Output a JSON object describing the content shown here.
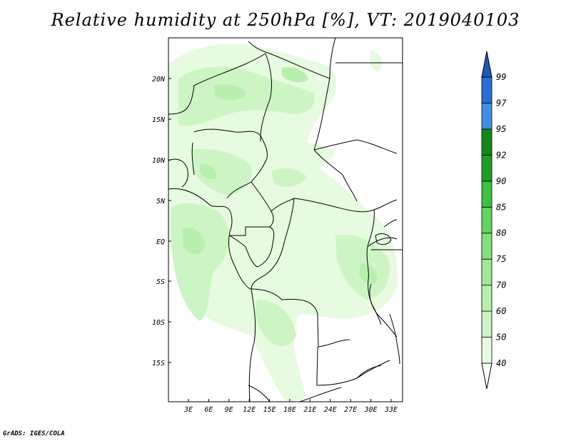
{
  "title": "Relative humidity at 250hPa [%], VT: 2019040103",
  "credit": "GrADS: IGES/COLA",
  "map": {
    "lon_range": [
      0,
      35
    ],
    "lat_range": [
      -20,
      25
    ],
    "lat_ticks": [
      "20N",
      "15N",
      "10N",
      "5N",
      "EQ",
      "5S",
      "10S",
      "15S"
    ],
    "lon_ticks": [
      "3E",
      "6E",
      "9E",
      "12E",
      "15E",
      "18E",
      "21E",
      "24E",
      "27E",
      "30E",
      "33E"
    ],
    "field_colors": {
      "40": "#e6fbe0",
      "50": "#cdf5c4",
      "60": "#b6f0ac"
    }
  },
  "colorbar": {
    "levels": [
      "40",
      "50",
      "60",
      "70",
      "75",
      "80",
      "85",
      "90",
      "92",
      "95",
      "97",
      "99"
    ],
    "colors": [
      "#ffffff",
      "#e6fbe0",
      "#cdf5c4",
      "#b6f0ac",
      "#9fea94",
      "#82e07a",
      "#61d65e",
      "#3ec23e",
      "#1e9e22",
      "#108a14",
      "#3f8fe6",
      "#2a6fd6",
      "#1e58b8"
    ]
  }
}
